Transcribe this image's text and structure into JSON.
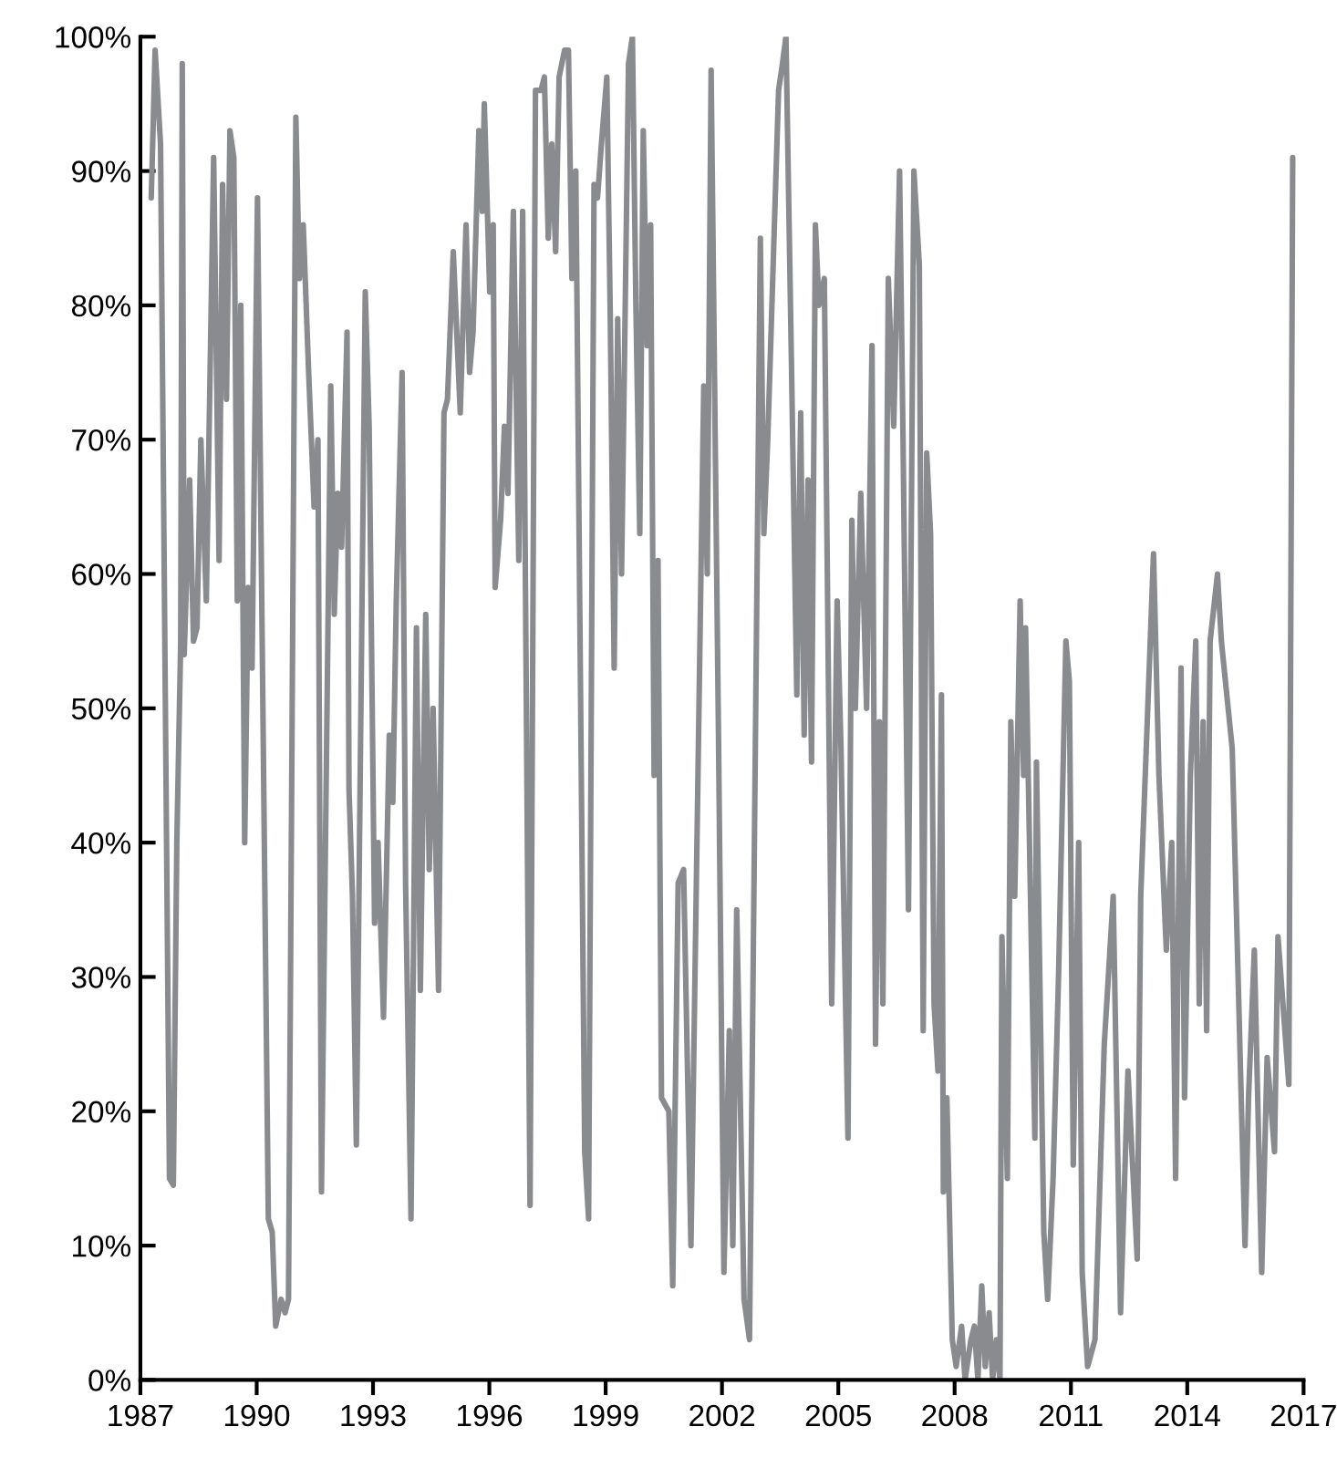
{
  "chart_data": {
    "type": "line",
    "x": [
      1987.28,
      1987.38,
      1987.52,
      1987.75,
      1987.85,
      1987.94,
      1988.04,
      1988.08,
      1988.13,
      1988.27,
      1988.37,
      1988.46,
      1988.56,
      1988.7,
      1988.89,
      1989.03,
      1989.12,
      1989.22,
      1989.31,
      1989.41,
      1989.5,
      1989.59,
      1989.69,
      1989.78,
      1989.88,
      1990.02,
      1990.3,
      1990.4,
      1990.49,
      1990.63,
      1990.73,
      1990.82,
      1991.01,
      1991.1,
      1991.2,
      1991.34,
      1991.48,
      1991.58,
      1991.67,
      1991.91,
      1992.0,
      1992.09,
      1992.19,
      1992.33,
      1992.38,
      1992.47,
      1992.57,
      1992.8,
      1992.9,
      1993.04,
      1993.13,
      1993.27,
      1993.42,
      1993.51,
      1993.6,
      1993.75,
      1993.84,
      1993.98,
      1994.12,
      1994.22,
      1994.36,
      1994.45,
      1994.55,
      1994.69,
      1994.83,
      1994.92,
      1995.07,
      1995.16,
      1995.25,
      1995.4,
      1995.49,
      1995.58,
      1995.73,
      1995.82,
      1995.87,
      1996.01,
      1996.1,
      1996.15,
      1996.29,
      1996.39,
      1996.48,
      1996.62,
      1996.76,
      1996.86,
      1997.05,
      1997.19,
      1997.33,
      1997.42,
      1997.52,
      1997.61,
      1997.71,
      1997.8,
      1997.94,
      1998.04,
      1998.13,
      1998.23,
      1998.46,
      1998.56,
      1998.7,
      1998.79,
      1998.89,
      1999.03,
      1999.12,
      1999.22,
      1999.31,
      1999.41,
      1999.59,
      1999.69,
      1999.78,
      1999.88,
      1999.97,
      2000.07,
      2000.16,
      2000.25,
      2000.35,
      2000.44,
      2000.63,
      2000.73,
      2000.87,
      2001.01,
      2001.2,
      2001.53,
      2001.62,
      2001.72,
      2001.91,
      2002.05,
      2002.19,
      2002.28,
      2002.38,
      2002.57,
      2002.71,
      2002.99,
      2003.08,
      2003.18,
      2003.46,
      2003.56,
      2003.65,
      2003.79,
      2003.93,
      2004.03,
      2004.12,
      2004.22,
      2004.31,
      2004.41,
      2004.5,
      2004.64,
      2004.83,
      2004.97,
      2005.07,
      2005.25,
      2005.35,
      2005.44,
      2005.58,
      2005.73,
      2005.87,
      2005.96,
      2006.06,
      2006.15,
      2006.29,
      2006.43,
      2006.58,
      2006.67,
      2006.81,
      2006.95,
      2007.09,
      2007.19,
      2007.28,
      2007.38,
      2007.47,
      2007.57,
      2007.66,
      2007.71,
      2007.8,
      2007.94,
      2008.04,
      2008.18,
      2008.27,
      2008.42,
      2008.51,
      2008.6,
      2008.7,
      2008.79,
      2008.89,
      2008.98,
      2009.08,
      2009.17,
      2009.22,
      2009.36,
      2009.45,
      2009.55,
      2009.69,
      2009.78,
      2009.83,
      2010.07,
      2010.11,
      2010.3,
      2010.4,
      2010.54,
      2010.68,
      2010.87,
      2010.96,
      2011.06,
      2011.2,
      2011.29,
      2011.43,
      2011.62,
      2011.86,
      2012.09,
      2012.28,
      2012.47,
      2012.71,
      2012.8,
      2013.13,
      2013.27,
      2013.46,
      2013.6,
      2013.7,
      2013.84,
      2013.93,
      2014.08,
      2014.22,
      2014.31,
      2014.41,
      2014.5,
      2014.59,
      2014.78,
      2014.88,
      2015.16,
      2015.49,
      2015.58,
      2015.73,
      2015.92,
      2016.06,
      2016.25,
      2016.34,
      2016.62,
      2016.72
    ],
    "values": [
      88,
      99,
      92,
      15,
      14.5,
      40,
      55,
      98,
      54,
      67,
      55,
      56,
      70,
      58,
      91,
      61,
      89,
      73,
      93,
      91,
      58,
      80,
      40,
      59,
      53,
      88,
      12,
      11,
      4,
      6,
      5,
      6,
      94,
      82,
      86,
      75,
      65,
      70,
      14,
      74,
      57,
      66,
      62,
      78,
      44,
      36,
      17.5,
      81,
      71,
      34,
      40,
      27,
      48,
      43,
      58,
      75,
      37,
      12,
      56,
      29,
      57,
      38,
      50,
      29,
      72,
      73,
      84,
      78,
      72,
      86,
      75,
      78,
      93,
      87,
      95,
      81,
      86,
      59,
      64,
      71,
      66,
      87,
      61,
      87,
      13,
      96,
      96,
      97,
      85,
      92,
      84,
      97,
      99,
      99,
      82,
      90,
      17,
      12,
      89,
      88,
      92,
      97,
      79,
      53,
      79,
      60,
      98,
      100,
      80,
      63,
      93,
      77,
      86,
      45,
      61,
      21,
      20,
      7,
      37,
      38,
      10,
      74,
      60,
      97.5,
      48,
      8,
      26,
      10,
      35,
      6,
      3,
      85,
      63,
      70,
      96,
      98,
      100,
      76,
      51,
      72,
      48,
      67,
      46,
      86,
      80,
      82,
      28,
      58,
      47,
      18,
      64,
      50,
      66,
      50,
      77,
      25,
      49,
      28,
      82,
      71,
      90,
      70,
      35,
      90,
      83,
      26,
      69,
      63,
      28,
      23,
      51,
      14,
      21,
      3,
      1,
      4,
      0,
      3,
      4,
      0,
      7,
      1,
      5,
      0,
      3,
      0,
      33,
      15,
      49,
      36,
      58,
      45,
      56,
      18,
      46,
      11,
      6,
      15,
      30,
      55,
      52,
      16,
      40,
      8,
      1,
      3,
      25,
      36,
      5,
      23,
      9,
      36,
      61.5,
      45,
      32,
      40,
      15,
      53,
      21,
      45,
      55,
      28,
      49,
      26,
      55,
      60,
      55,
      47,
      10,
      21,
      32,
      8,
      24,
      17,
      33,
      22,
      91
    ],
    "color": "#8a8b8e",
    "xlim": [
      1987,
      2017
    ],
    "xticks": [
      1987,
      1990,
      1993,
      1996,
      1999,
      2002,
      2005,
      2008,
      2011,
      2014,
      2017
    ],
    "ylim": [
      0,
      100
    ],
    "yticks": [
      {
        "value": 0,
        "label": "0%"
      },
      {
        "value": 10,
        "label": "10%"
      },
      {
        "value": 20,
        "label": "20%"
      },
      {
        "value": 30,
        "label": "30%"
      },
      {
        "value": 40,
        "label": "40%"
      },
      {
        "value": 50,
        "label": "50%"
      },
      {
        "value": 60,
        "label": "60%"
      },
      {
        "value": 70,
        "label": "70%"
      },
      {
        "value": 80,
        "label": "80%"
      },
      {
        "value": 90,
        "label": "90%"
      },
      {
        "value": 100,
        "label": "100%"
      }
    ],
    "grid": false,
    "legend": false
  }
}
